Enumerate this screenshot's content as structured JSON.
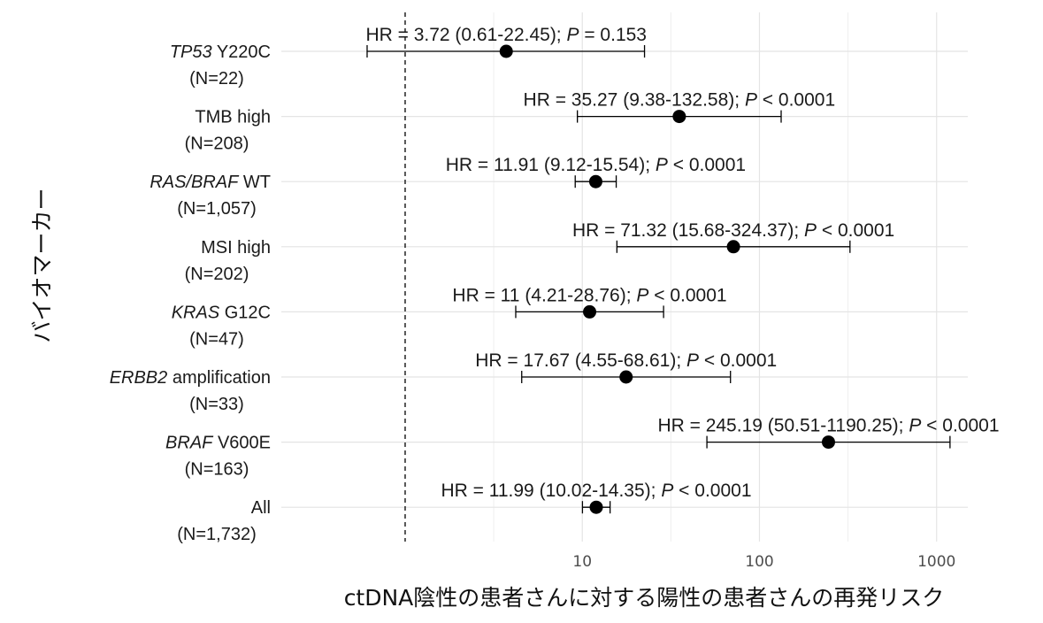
{
  "chart_data": {
    "type": "forest",
    "xscale": "log10",
    "xlim": [
      0.2,
      1500
    ],
    "reference_line": 1,
    "x_ticks": [
      {
        "value": 10,
        "label": "10"
      },
      {
        "value": 100,
        "label": "100"
      },
      {
        "value": 1000,
        "label": "1000"
      }
    ],
    "xlabel": "ctDNA陰性の患者さんに対する陽性の患者さんの再発リスク",
    "ylabel": "バイオマーカー",
    "grid": true,
    "rows": [
      {
        "gene": "TP53",
        "rest": " Y220C",
        "n": "(N=22)",
        "hr": 3.72,
        "lo": 0.61,
        "hi": 22.45,
        "label_main": "HR = 3.72 (0.61-22.45); ",
        "p_op": " = 0.153"
      },
      {
        "gene": "",
        "rest": "TMB high",
        "n": "(N=208)",
        "hr": 35.27,
        "lo": 9.38,
        "hi": 132.58,
        "label_main": "HR = 35.27 (9.38-132.58); ",
        "p_op": " < 0.0001"
      },
      {
        "gene": "RAS/BRAF",
        "rest": " WT",
        "n": "(N=1,057)",
        "hr": 11.91,
        "lo": 9.12,
        "hi": 15.54,
        "label_main": "HR = 11.91 (9.12-15.54); ",
        "p_op": " < 0.0001"
      },
      {
        "gene": "",
        "rest": "MSI high",
        "n": "(N=202)",
        "hr": 71.32,
        "lo": 15.68,
        "hi": 324.37,
        "label_main": "HR = 71.32 (15.68-324.37); ",
        "p_op": " < 0.0001"
      },
      {
        "gene": "KRAS",
        "rest": " G12C",
        "n": "(N=47)",
        "hr": 11,
        "lo": 4.21,
        "hi": 28.76,
        "label_main": "HR = 11 (4.21-28.76); ",
        "p_op": " < 0.0001"
      },
      {
        "gene": "ERBB2",
        "rest": " amplification",
        "n": "(N=33)",
        "hr": 17.67,
        "lo": 4.55,
        "hi": 68.61,
        "label_main": "HR = 17.67 (4.55-68.61); ",
        "p_op": " < 0.0001"
      },
      {
        "gene": "BRAF",
        "rest": " V600E",
        "n": "(N=163)",
        "hr": 245.19,
        "lo": 50.51,
        "hi": 1190.25,
        "label_main": "HR = 245.19 (50.51-1190.25); ",
        "p_op": " < 0.0001"
      },
      {
        "gene": "",
        "rest": "All",
        "n": "(N=1,732)",
        "hr": 11.99,
        "lo": 10.02,
        "hi": 14.35,
        "label_main": "HR = 11.99 (10.02-14.35); ",
        "p_op": " < 0.0001"
      }
    ],
    "p_symbol": "P",
    "colors": {
      "grid": "#e4e4e4",
      "point": "#000000",
      "text": "#1a1a1a"
    }
  }
}
